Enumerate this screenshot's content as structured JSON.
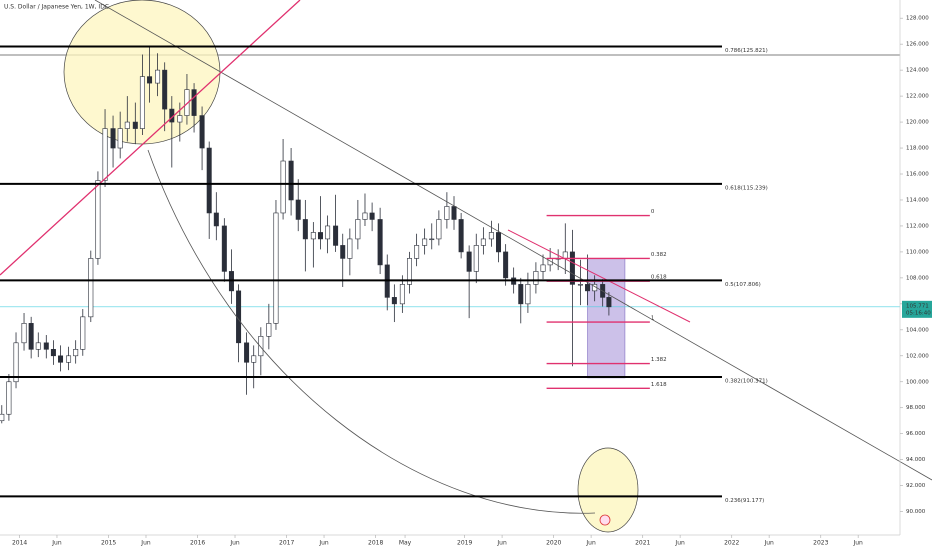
{
  "chart_data": {
    "type": "candlestick",
    "title": "U.S. Dollar / Japanese Yen, 1W, IDC",
    "color": "#2a2e39",
    "x": [
      2013.8,
      2013.88,
      2013.96,
      2014.05,
      2014.13,
      2014.21,
      2014.3,
      2014.38,
      2014.46,
      2014.55,
      2014.63,
      2014.71,
      2014.8,
      2014.88,
      2014.96,
      2015.05,
      2015.13,
      2015.21,
      2015.3,
      2015.38,
      2015.46,
      2015.55,
      2015.63,
      2015.71,
      2015.8,
      2015.88,
      2015.96,
      2016.05,
      2016.13,
      2016.21,
      2016.3,
      2016.38,
      2016.46,
      2016.55,
      2016.63,
      2016.71,
      2016.8,
      2016.88,
      2016.96,
      2017.05,
      2017.13,
      2017.21,
      2017.3,
      2017.38,
      2017.46,
      2017.55,
      2017.63,
      2017.71,
      2017.8,
      2017.88,
      2017.96,
      2018.05,
      2018.13,
      2018.21,
      2018.3,
      2018.38,
      2018.46,
      2018.55,
      2018.63,
      2018.71,
      2018.8,
      2018.88,
      2018.96,
      2019.05,
      2019.13,
      2019.21,
      2019.3,
      2019.38,
      2019.46,
      2019.55,
      2019.63,
      2019.71,
      2019.8,
      2019.88,
      2019.96,
      2020.05,
      2020.13,
      2020.21,
      2020.3,
      2020.38,
      2020.46,
      2020.55,
      2020.62
    ],
    "open": [
      97.0,
      97.5,
      100,
      103,
      104.5,
      102.5,
      103,
      102.5,
      102,
      101.5,
      102,
      102.5,
      105,
      109.5,
      115.5,
      119.5,
      118,
      119.5,
      120,
      119.5,
      123.5,
      123,
      124,
      121,
      120,
      120.5,
      122.5,
      120.5,
      118,
      113,
      112,
      108.5,
      107,
      103,
      101.5,
      102,
      103.5,
      104.5,
      113,
      117,
      114,
      112.5,
      111,
      111.5,
      111,
      112,
      110.5,
      109.5,
      111,
      112.5,
      113,
      112.5,
      109,
      106.5,
      106,
      107.5,
      109.5,
      110.5,
      111,
      111,
      112.5,
      113.5,
      112.5,
      110,
      108.5,
      110.5,
      111,
      111.5,
      110,
      108,
      107.5,
      106,
      107.5,
      108.5,
      109,
      109.5,
      109.5,
      110,
      107.5,
      107.5,
      107,
      107.5,
      106.5
    ],
    "high": [
      98.2,
      100.6,
      103.8,
      105.3,
      105.0,
      103.8,
      103.6,
      103.2,
      102.8,
      102.7,
      103.2,
      105.6,
      110.1,
      116.2,
      121.0,
      120.5,
      120.8,
      122.0,
      121.5,
      125.2,
      125.8,
      125.3,
      124.6,
      122.0,
      121.5,
      123.7,
      123.0,
      121.2,
      118.5,
      114.6,
      112.6,
      110.2,
      107.5,
      103.8,
      102.8,
      104.2,
      106.0,
      114.0,
      118.7,
      118.0,
      115.6,
      114.0,
      112.3,
      114.3,
      112.8,
      114.4,
      111.4,
      111.8,
      114.0,
      114.5,
      113.8,
      113.4,
      109.8,
      107.5,
      108.2,
      110.0,
      111.4,
      111.8,
      112.2,
      113.2,
      114.6,
      114.3,
      113.0,
      110.5,
      111.4,
      111.9,
      112.4,
      112.2,
      110.6,
      108.8,
      108.0,
      108.4,
      109.2,
      109.8,
      110.3,
      110.2,
      112.2,
      111.7,
      109.4,
      109.8,
      108.2,
      107.9,
      106.9
    ],
    "low": [
      96.8,
      97.0,
      99.5,
      102.4,
      101.8,
      101.9,
      101.8,
      101.3,
      100.8,
      100.9,
      101.4,
      102.0,
      104.6,
      109.0,
      115.0,
      116.5,
      117.2,
      118.5,
      118.3,
      119.0,
      121.5,
      122.0,
      119.3,
      116.5,
      118.5,
      119.8,
      119.2,
      116.3,
      111.0,
      110.9,
      107.7,
      106.0,
      101.5,
      99.0,
      99.5,
      100.5,
      102.5,
      104.0,
      112.5,
      112.8,
      111.6,
      108.5,
      108.8,
      110.2,
      109.9,
      110.0,
      107.3,
      108.2,
      110.2,
      112.0,
      111.6,
      108.3,
      105.5,
      104.6,
      105.3,
      106.8,
      108.9,
      109.8,
      110.2,
      110.5,
      111.8,
      111.7,
      109.5,
      104.9,
      107.6,
      109.8,
      110.4,
      109.2,
      107.4,
      106.8,
      104.5,
      105.3,
      106.8,
      107.9,
      108.5,
      108.6,
      108.3,
      101.2,
      105.9,
      105.9,
      106.2,
      105.8,
      105.1
    ],
    "close": [
      97.5,
      100,
      103,
      104.5,
      102.5,
      103,
      102.5,
      102,
      101.5,
      102,
      102.5,
      105,
      109.5,
      115.5,
      119.5,
      118,
      119.5,
      120,
      119.5,
      123.5,
      123,
      124,
      121,
      120,
      120.5,
      122.5,
      120.5,
      118,
      113,
      112,
      108.5,
      107,
      103,
      101.5,
      102,
      103.5,
      104.5,
      113,
      117,
      114,
      112.5,
      111,
      111.5,
      111,
      112,
      110.5,
      109.5,
      111,
      112.5,
      113,
      112.5,
      109,
      106.5,
      106,
      107.5,
      109.5,
      110.5,
      111,
      111,
      112.5,
      113.5,
      112.5,
      110,
      108.5,
      110.5,
      111,
      111.5,
      110,
      108,
      107.5,
      106,
      107.5,
      108.5,
      109,
      109.5,
      109.5,
      110,
      107.5,
      107.5,
      107,
      107.5,
      106.5,
      105.771
    ],
    "xlim": [
      2013.78,
      2023.89
    ],
    "ylim": [
      88.2,
      129.4
    ],
    "xticks": [
      {
        "value": 2014,
        "label": "2014"
      },
      {
        "value": 2014.42,
        "label": "Jun"
      },
      {
        "value": 2015,
        "label": "2015"
      },
      {
        "value": 2015.42,
        "label": "Jun"
      },
      {
        "value": 2016,
        "label": "2016"
      },
      {
        "value": 2016.42,
        "label": "Jun"
      },
      {
        "value": 2017,
        "label": "2017"
      },
      {
        "value": 2017.42,
        "label": "Jun"
      },
      {
        "value": 2018,
        "label": "2018"
      },
      {
        "value": 2018.33,
        "label": "May"
      },
      {
        "value": 2019,
        "label": "2019"
      },
      {
        "value": 2019.42,
        "label": "Jun"
      },
      {
        "value": 2020,
        "label": "2020"
      },
      {
        "value": 2020.42,
        "label": "Jun"
      },
      {
        "value": 2021,
        "label": "2021"
      },
      {
        "value": 2021.42,
        "label": "Jun"
      },
      {
        "value": 2022,
        "label": "2022"
      },
      {
        "value": 2022.42,
        "label": "Jun"
      },
      {
        "value": 2023,
        "label": "2023"
      },
      {
        "value": 2023.42,
        "label": "Jun"
      }
    ],
    "yticks": [
      {
        "value": 90,
        "label": "90.000"
      },
      {
        "value": 92,
        "label": "92.000"
      },
      {
        "value": 94,
        "label": "94.000"
      },
      {
        "value": 96,
        "label": "96.000"
      },
      {
        "value": 98,
        "label": "98.000"
      },
      {
        "value": 100,
        "label": "100.000"
      },
      {
        "value": 102,
        "label": "102.000"
      },
      {
        "value": 104,
        "label": "104.000"
      },
      {
        "value": 106,
        "label": "106.000"
      },
      {
        "value": 108,
        "label": "108.000"
      },
      {
        "value": 110,
        "label": "110.000"
      },
      {
        "value": 112,
        "label": "112.000"
      },
      {
        "value": 114,
        "label": "114.000"
      },
      {
        "value": 116,
        "label": "116.000"
      },
      {
        "value": 118,
        "label": "118.000"
      },
      {
        "value": 120,
        "label": "120.000"
      },
      {
        "value": 122,
        "label": "122.000"
      },
      {
        "value": 124,
        "label": "124.000"
      },
      {
        "value": 126,
        "label": "126.000"
      },
      {
        "value": 128,
        "label": "128.000"
      }
    ],
    "levels": {
      "color": "#000000",
      "items": [
        {
          "value": 125.821,
          "label": "0.786(125.821)"
        },
        {
          "value": 115.239,
          "label": "0.618(115.239)"
        },
        {
          "value": 107.806,
          "label": "0.5(107.806)"
        },
        {
          "value": 100.371,
          "label": "0.382(100.371)"
        },
        {
          "value": 91.177,
          "label": "0.236(91.177)"
        }
      ]
    },
    "fib": {
      "color": "#e0316f",
      "x": [
        2019.92,
        2021.08
      ],
      "items": [
        {
          "value": 112.8,
          "label": "0"
        },
        {
          "value": 109.5,
          "label": "0.382"
        },
        {
          "value": 107.75,
          "label": "0.618"
        },
        {
          "value": 104.6,
          "label": "1"
        },
        {
          "value": 101.4,
          "label": "1.382"
        },
        {
          "value": 99.5,
          "label": "1.618"
        }
      ]
    },
    "range_box": {
      "x": [
        2020.38,
        2020.8
      ],
      "y": [
        100.3,
        109.5
      ],
      "color": "#b7a7e0"
    },
    "current_price": {
      "value": 105.771,
      "label": "105.771",
      "color": "#26a69a"
    },
    "countdown": "05:16:40"
  }
}
